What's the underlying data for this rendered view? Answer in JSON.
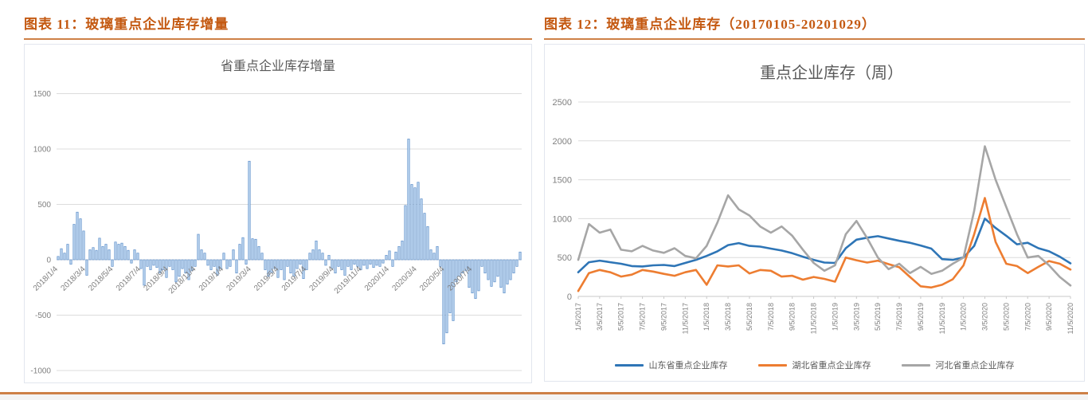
{
  "page": {
    "accent_color": "#C45911",
    "rule_color": "#CE8147"
  },
  "figures": [
    {
      "caption": "图表 11：玻璃重点企业库存增量"
    },
    {
      "caption": "图表 12：玻璃重点企业库存（20170105-20201029）"
    }
  ],
  "chart_data": [
    {
      "type": "bar",
      "title": "省重点企业库存增量",
      "title_color": "#595959",
      "ylim": [
        -1000,
        1500
      ],
      "y_ticks": [
        1500,
        1000,
        500,
        0,
        -500,
        -1000
      ],
      "grid": true,
      "x_tick_labels": [
        "2018/1/4",
        "2018/3/4",
        "2018/5/4",
        "2018/7/4",
        "2018/9/4",
        "2018/11/4",
        "2019/1/4",
        "2019/3/4",
        "2019/5/4",
        "2019/7/4",
        "2019/9/4",
        "2019/11/4",
        "2020/1/4",
        "2020/3/4",
        "2020/5/4",
        "2020/7/4"
      ],
      "x_tick_rotation": -45,
      "bar_fill": "#BDD5EE",
      "bar_stroke": "#5E8FCB",
      "values": [
        30,
        100,
        60,
        140,
        -40,
        320,
        430,
        370,
        260,
        -140,
        90,
        110,
        85,
        195,
        120,
        140,
        90,
        -60,
        160,
        140,
        150,
        120,
        85,
        -30,
        90,
        60,
        -80,
        -230,
        -60,
        -90,
        -50,
        -70,
        -120,
        -90,
        -160,
        -60,
        -90,
        -200,
        -150,
        -80,
        -120,
        -180,
        -100,
        -60,
        230,
        90,
        60,
        -50,
        -90,
        -60,
        -140,
        -80,
        60,
        -80,
        -60,
        90,
        -120,
        140,
        200,
        -40,
        890,
        190,
        185,
        120,
        60,
        -90,
        -150,
        -120,
        -80,
        -160,
        -90,
        -180,
        -60,
        -120,
        -150,
        -80,
        -40,
        -170,
        -90,
        60,
        90,
        170,
        90,
        60,
        -50,
        40,
        -80,
        -120,
        -60,
        -90,
        -140,
        -60,
        -90,
        -40,
        -60,
        -90,
        -50,
        -80,
        -40,
        -70,
        -50,
        -60,
        -30,
        40,
        80,
        -60,
        70,
        120,
        170,
        490,
        1090,
        680,
        650,
        700,
        550,
        420,
        300,
        90,
        60,
        120,
        -60,
        -760,
        -660,
        -480,
        -550,
        -200,
        -150,
        -120,
        -100,
        -250,
        -300,
        -350,
        -280,
        -60,
        -120,
        -180,
        -240,
        -200,
        -150,
        -250,
        -300,
        -220,
        -180,
        -120,
        -60,
        70
      ]
    },
    {
      "type": "line",
      "title": "重点企业库存（周）",
      "title_color": "#595959",
      "ylim": [
        0,
        2500
      ],
      "y_ticks": [
        2500,
        2000,
        1500,
        1000,
        500,
        0
      ],
      "grid": true,
      "x_tick_labels": [
        "1/5/2017",
        "3/5/2017",
        "5/5/2017",
        "7/5/2017",
        "9/5/2017",
        "11/5/2017",
        "1/5/2018",
        "3/5/2018",
        "5/5/2018",
        "7/5/2018",
        "9/5/2018",
        "11/5/2018",
        "1/5/2019",
        "3/5/2019",
        "5/5/2019",
        "7/5/2019",
        "9/5/2019",
        "11/5/2019",
        "1/5/2020",
        "3/5/2020",
        "5/5/2020",
        "7/5/2020",
        "9/5/2020",
        "11/5/2020"
      ],
      "x_tick_rotation": -90,
      "legend_position": "bottom",
      "series": [
        {
          "name": "山东省重点企业库存",
          "color": "#2E75B6",
          "values": [
            310,
            440,
            460,
            440,
            420,
            390,
            385,
            400,
            405,
            390,
            430,
            470,
            520,
            580,
            660,
            685,
            650,
            640,
            615,
            590,
            555,
            510,
            470,
            435,
            430,
            620,
            730,
            755,
            775,
            745,
            715,
            690,
            655,
            615,
            480,
            470,
            500,
            650,
            1000,
            880,
            780,
            670,
            690,
            620,
            580,
            510,
            425
          ]
        },
        {
          "name": "湖北省重点企业库存",
          "color": "#ED7D31",
          "values": [
            70,
            300,
            340,
            310,
            255,
            280,
            340,
            320,
            290,
            265,
            310,
            340,
            150,
            400,
            385,
            400,
            295,
            340,
            330,
            255,
            265,
            215,
            250,
            225,
            190,
            500,
            465,
            435,
            460,
            415,
            375,
            250,
            130,
            115,
            150,
            220,
            400,
            800,
            1265,
            700,
            420,
            390,
            300,
            380,
            455,
            420,
            345
          ]
        },
        {
          "name": "河北省重点企业库存",
          "color": "#A6A6A6",
          "values": [
            470,
            930,
            820,
            860,
            600,
            580,
            650,
            590,
            560,
            620,
            520,
            490,
            650,
            950,
            1300,
            1120,
            1040,
            900,
            820,
            900,
            780,
            600,
            430,
            330,
            400,
            800,
            970,
            750,
            500,
            350,
            420,
            300,
            380,
            290,
            330,
            420,
            500,
            1100,
            1930,
            1500,
            1150,
            800,
            500,
            520,
            400,
            250,
            140
          ]
        }
      ]
    }
  ]
}
